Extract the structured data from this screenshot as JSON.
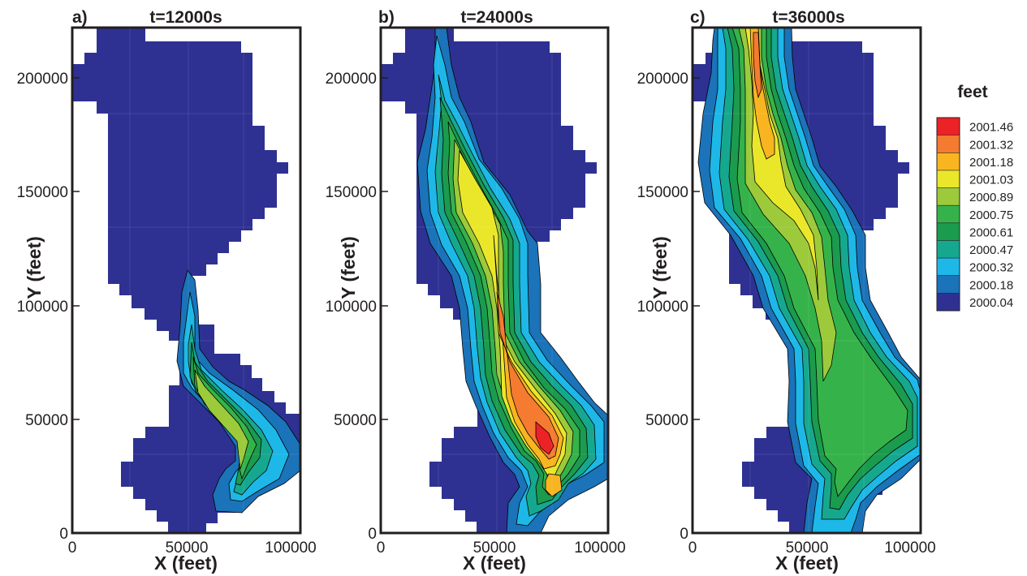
{
  "chart_data": {
    "type": "heatmap",
    "plot_kind": "filled contour map (water surface elevation)",
    "legend": {
      "title": "feet",
      "placement": "right",
      "levels": [
        "2001.46",
        "2001.32",
        "2001.18",
        "2001.03",
        "2000.89",
        "2000.75",
        "2000.61",
        "2000.47",
        "2000.32",
        "2000.18",
        "2000.04"
      ],
      "colors": [
        "#ec2227",
        "#f47b30",
        "#f9b521",
        "#eae72a",
        "#9cca3b",
        "#35b34a",
        "#1b9b4e",
        "#16a88f",
        "#1db8e8",
        "#1b73b9",
        "#2e3192"
      ]
    },
    "panels": [
      {
        "letter": "a)",
        "title": "t=12000s",
        "xlabel": "X (feet)",
        "ylabel": "Y (feet)",
        "xlim": [
          0,
          100000
        ],
        "ylim": [
          0,
          222000
        ],
        "xticks": [
          "0",
          "50000",
          "100000"
        ],
        "yticks": [
          "0",
          "50000",
          "100000",
          "150000",
          "200000"
        ],
        "grid": false,
        "max_level_reached": "2000.89",
        "plume_extent_y": [
          10000,
          115000
        ]
      },
      {
        "letter": "b)",
        "title": "t=24000s",
        "xlabel": "X (feet)",
        "ylabel": "Y (feet)",
        "xlim": [
          0,
          100000
        ],
        "ylim": [
          0,
          222000
        ],
        "xticks": [
          "0",
          "50000",
          "100000"
        ],
        "yticks": [
          "0",
          "50000",
          "100000",
          "150000",
          "200000"
        ],
        "grid": false,
        "max_level_reached": "2001.46",
        "plume_extent_y": [
          2000,
          222000
        ]
      },
      {
        "letter": "c)",
        "title": "t=36000s",
        "xlabel": "X (feet)",
        "ylabel": "Y (feet)",
        "xlim": [
          0,
          100000
        ],
        "ylim": [
          0,
          222000
        ],
        "xticks": [
          "0",
          "50000",
          "100000"
        ],
        "yticks": [
          "0",
          "50000",
          "100000",
          "150000",
          "200000"
        ],
        "grid": false,
        "max_level_reached": "2001.46",
        "plume_extent_y": [
          0,
          222000
        ]
      }
    ]
  }
}
